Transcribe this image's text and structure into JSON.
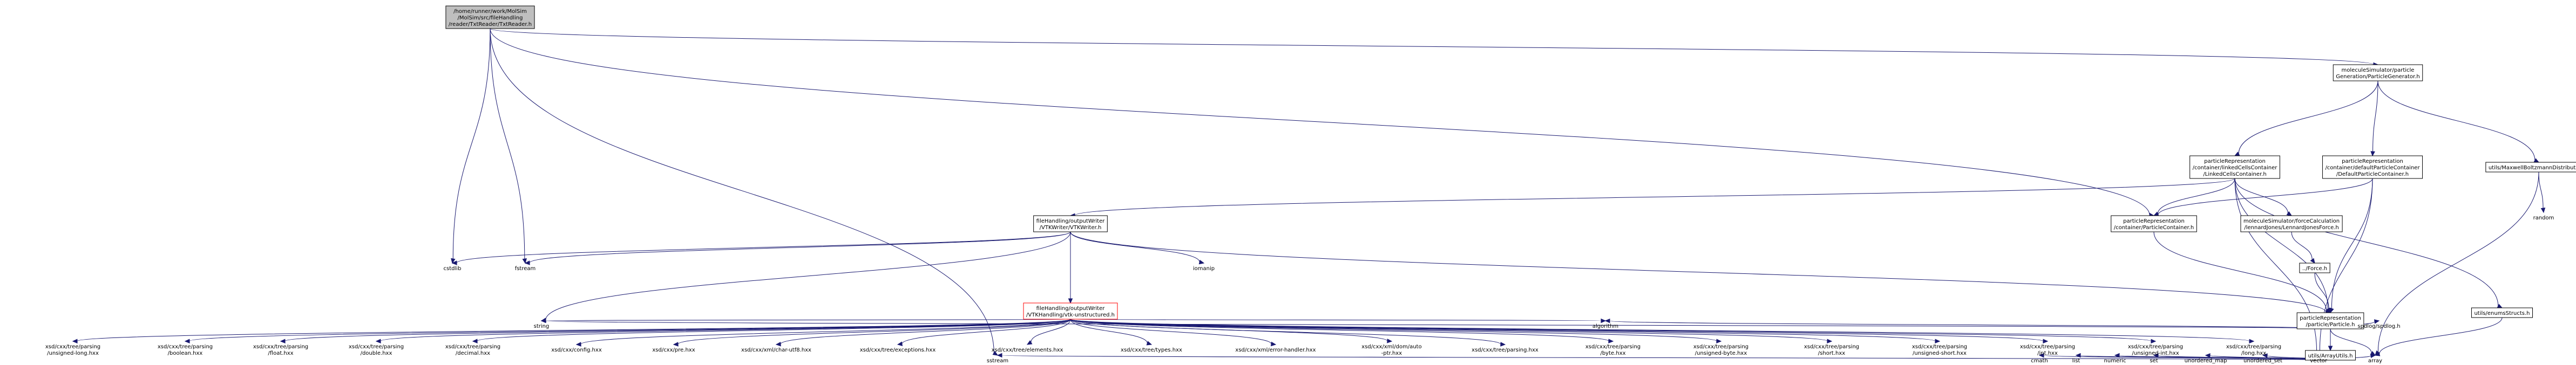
{
  "nodes": [
    {
      "id": "root",
      "lines": [
        "/home/runner/work/MolSim",
        "/MolSim/src/fileHandling",
        "/reader/TxtReader/TxtReader.h"
      ],
      "style": "root"
    },
    {
      "id": "gen",
      "lines": [
        "moleculeSimulator/particle",
        "Generation/ParticleGenerator.h"
      ],
      "style": "box"
    },
    {
      "id": "linked",
      "lines": [
        "particleRepresentation",
        "/container/linkedCellsContainer",
        "/LinkedCellsContainer.h"
      ],
      "style": "box"
    },
    {
      "id": "defcont",
      "lines": [
        "particleRepresentation",
        "/container/defaultParticleContainer",
        "/DefaultParticleContainer.h"
      ],
      "style": "box"
    },
    {
      "id": "maxwell",
      "lines": [
        "utils/MaxwellBoltzmannDistribution.h"
      ],
      "style": "box"
    },
    {
      "id": "random",
      "lines": [
        "random"
      ],
      "style": "plain"
    },
    {
      "id": "vtkw",
      "lines": [
        "fileHandling/outputWriter",
        "/VTKWriter/VTKWriter.h"
      ],
      "style": "box"
    },
    {
      "id": "pcont",
      "lines": [
        "particleRepresentation",
        "/container/ParticleContainer.h"
      ],
      "style": "box"
    },
    {
      "id": "lj",
      "lines": [
        "moleculeSimulator/forceCalculation",
        "/lennardJones/LennardJonesForce.h"
      ],
      "style": "box"
    },
    {
      "id": "force",
      "lines": [
        "../Force.h"
      ],
      "style": "box"
    },
    {
      "id": "cstdlib",
      "lines": [
        "cstdlib"
      ],
      "style": "plain"
    },
    {
      "id": "fstream",
      "lines": [
        "fstream"
      ],
      "style": "plain"
    },
    {
      "id": "iomanip",
      "lines": [
        "iomanip"
      ],
      "style": "plain"
    },
    {
      "id": "vtkun",
      "lines": [
        "fileHandling/outputWriter",
        "/VTKHandling/vtk-unstructured.h"
      ],
      "style": "red"
    },
    {
      "id": "particle",
      "lines": [
        "particleRepresentation",
        "/particle/Particle.h"
      ],
      "style": "box"
    },
    {
      "id": "xs_ulong",
      "lines": [
        "xsd/cxx/tree/parsing",
        "/unsigned-long.hxx"
      ],
      "style": "plain"
    },
    {
      "id": "xs_bool",
      "lines": [
        "xsd/cxx/tree/parsing",
        "/boolean.hxx"
      ],
      "style": "plain"
    },
    {
      "id": "xs_float",
      "lines": [
        "xsd/cxx/tree/parsing",
        "/float.hxx"
      ],
      "style": "plain"
    },
    {
      "id": "xs_double",
      "lines": [
        "xsd/cxx/tree/parsing",
        "/double.hxx"
      ],
      "style": "plain"
    },
    {
      "id": "xs_decimal",
      "lines": [
        "xsd/cxx/tree/parsing",
        "/decimal.hxx"
      ],
      "style": "plain"
    },
    {
      "id": "xs_config",
      "lines": [
        "xsd/cxx/config.hxx"
      ],
      "style": "plain"
    },
    {
      "id": "xs_pre",
      "lines": [
        "xsd/cxx/pre.hxx"
      ],
      "style": "plain"
    },
    {
      "id": "xs_utf8",
      "lines": [
        "xsd/cxx/xml/char-utf8.hxx"
      ],
      "style": "plain"
    },
    {
      "id": "xs_exc",
      "lines": [
        "xsd/cxx/tree/exceptions.hxx"
      ],
      "style": "plain"
    },
    {
      "id": "xs_elem",
      "lines": [
        "xsd/cxx/tree/elements.hxx"
      ],
      "style": "plain"
    },
    {
      "id": "xs_types",
      "lines": [
        "xsd/cxx/tree/types.hxx"
      ],
      "style": "plain"
    },
    {
      "id": "xs_errh",
      "lines": [
        "xsd/cxx/xml/error-handler.hxx"
      ],
      "style": "plain"
    },
    {
      "id": "xs_auto",
      "lines": [
        "xsd/cxx/xml/dom/auto",
        "-ptr.hxx"
      ],
      "style": "plain"
    },
    {
      "id": "xs_parsing",
      "lines": [
        "xsd/cxx/tree/parsing.hxx"
      ],
      "style": "plain"
    },
    {
      "id": "xs_byte",
      "lines": [
        "xsd/cxx/tree/parsing",
        "/byte.hxx"
      ],
      "style": "plain"
    },
    {
      "id": "xs_ubyte",
      "lines": [
        "xsd/cxx/tree/parsing",
        "/unsigned-byte.hxx"
      ],
      "style": "plain"
    },
    {
      "id": "xs_short",
      "lines": [
        "xsd/cxx/tree/parsing",
        "/short.hxx"
      ],
      "style": "plain"
    },
    {
      "id": "xs_ushort",
      "lines": [
        "xsd/cxx/tree/parsing",
        "/unsigned-short.hxx"
      ],
      "style": "plain"
    },
    {
      "id": "xs_int",
      "lines": [
        "xsd/cxx/tree/parsing",
        "/int.hxx"
      ],
      "style": "plain"
    },
    {
      "id": "xs_uint",
      "lines": [
        "xsd/cxx/tree/parsing",
        "/unsigned-int.hxx"
      ],
      "style": "plain"
    },
    {
      "id": "xs_long",
      "lines": [
        "xsd/cxx/tree/parsing",
        "/long.hxx"
      ],
      "style": "plain"
    },
    {
      "id": "enums",
      "lines": [
        "utils/enumsStructs.h"
      ],
      "style": "box"
    },
    {
      "id": "string",
      "lines": [
        "string"
      ],
      "style": "plain"
    },
    {
      "id": "algorithm",
      "lines": [
        "algorithm"
      ],
      "style": "plain"
    },
    {
      "id": "spdlog",
      "lines": [
        "spdlog/spdlog.h"
      ],
      "style": "plain"
    },
    {
      "id": "arrayutils",
      "lines": [
        "utils/ArrayUtils.h"
      ],
      "style": "box"
    },
    {
      "id": "sstream",
      "lines": [
        "sstream"
      ],
      "style": "plain"
    },
    {
      "id": "cmath",
      "lines": [
        "cmath"
      ],
      "style": "plain"
    },
    {
      "id": "list",
      "lines": [
        "list"
      ],
      "style": "plain"
    },
    {
      "id": "numeric",
      "lines": [
        "numeric"
      ],
      "style": "plain"
    },
    {
      "id": "set",
      "lines": [
        "set"
      ],
      "style": "plain"
    },
    {
      "id": "umap",
      "lines": [
        "unordered_map"
      ],
      "style": "plain"
    },
    {
      "id": "uset",
      "lines": [
        "unordered_set"
      ],
      "style": "plain"
    },
    {
      "id": "vector",
      "lines": [
        "vector"
      ],
      "style": "plain"
    },
    {
      "id": "array",
      "lines": [
        "array"
      ],
      "style": "plain"
    }
  ],
  "edges": [
    [
      "root",
      "gen"
    ],
    [
      "root",
      "pcont"
    ],
    [
      "root",
      "fstream"
    ],
    [
      "root",
      "cstdlib"
    ],
    [
      "root",
      "sstream"
    ],
    [
      "gen",
      "linked"
    ],
    [
      "gen",
      "defcont"
    ],
    [
      "gen",
      "maxwell"
    ],
    [
      "maxwell",
      "random"
    ],
    [
      "maxwell",
      "array"
    ],
    [
      "linked",
      "vtkw"
    ],
    [
      "linked",
      "pcont"
    ],
    [
      "linked",
      "lj"
    ],
    [
      "linked",
      "particle"
    ],
    [
      "linked",
      "enums"
    ],
    [
      "linked",
      "vector"
    ],
    [
      "defcont",
      "pcont"
    ],
    [
      "defcont",
      "particle"
    ],
    [
      "defcont",
      "vector"
    ],
    [
      "pcont",
      "particle"
    ],
    [
      "lj",
      "force"
    ],
    [
      "force",
      "particle"
    ],
    [
      "vtkw",
      "cstdlib"
    ],
    [
      "vtkw",
      "fstream"
    ],
    [
      "vtkw",
      "iomanip"
    ],
    [
      "vtkw",
      "vtkun"
    ],
    [
      "vtkw",
      "particle"
    ],
    [
      "vtkw",
      "string"
    ],
    [
      "vtkun",
      "xs_ulong"
    ],
    [
      "vtkun",
      "xs_bool"
    ],
    [
      "vtkun",
      "xs_float"
    ],
    [
      "vtkun",
      "xs_double"
    ],
    [
      "vtkun",
      "xs_decimal"
    ],
    [
      "vtkun",
      "xs_config"
    ],
    [
      "vtkun",
      "xs_pre"
    ],
    [
      "vtkun",
      "xs_utf8"
    ],
    [
      "vtkun",
      "xs_exc"
    ],
    [
      "vtkun",
      "xs_elem"
    ],
    [
      "vtkun",
      "xs_types"
    ],
    [
      "vtkun",
      "xs_errh"
    ],
    [
      "vtkun",
      "xs_auto"
    ],
    [
      "vtkun",
      "xs_parsing"
    ],
    [
      "vtkun",
      "xs_byte"
    ],
    [
      "vtkun",
      "xs_ubyte"
    ],
    [
      "vtkun",
      "xs_short"
    ],
    [
      "vtkun",
      "xs_ushort"
    ],
    [
      "vtkun",
      "xs_int"
    ],
    [
      "vtkun",
      "xs_uint"
    ],
    [
      "vtkun",
      "xs_long"
    ],
    [
      "vtkun",
      "string"
    ],
    [
      "vtkun",
      "algorithm"
    ],
    [
      "particle",
      "string"
    ],
    [
      "particle",
      "algorithm"
    ],
    [
      "particle",
      "spdlog"
    ],
    [
      "particle",
      "arrayutils"
    ],
    [
      "particle",
      "array"
    ],
    [
      "enums",
      "array"
    ],
    [
      "arrayutils",
      "sstream"
    ],
    [
      "arrayutils",
      "cmath"
    ],
    [
      "arrayutils",
      "list"
    ],
    [
      "arrayutils",
      "numeric"
    ],
    [
      "arrayutils",
      "set"
    ],
    [
      "arrayutils",
      "umap"
    ],
    [
      "arrayutils",
      "uset"
    ],
    [
      "arrayutils",
      "vector"
    ],
    [
      "arrayutils",
      "array"
    ]
  ]
}
